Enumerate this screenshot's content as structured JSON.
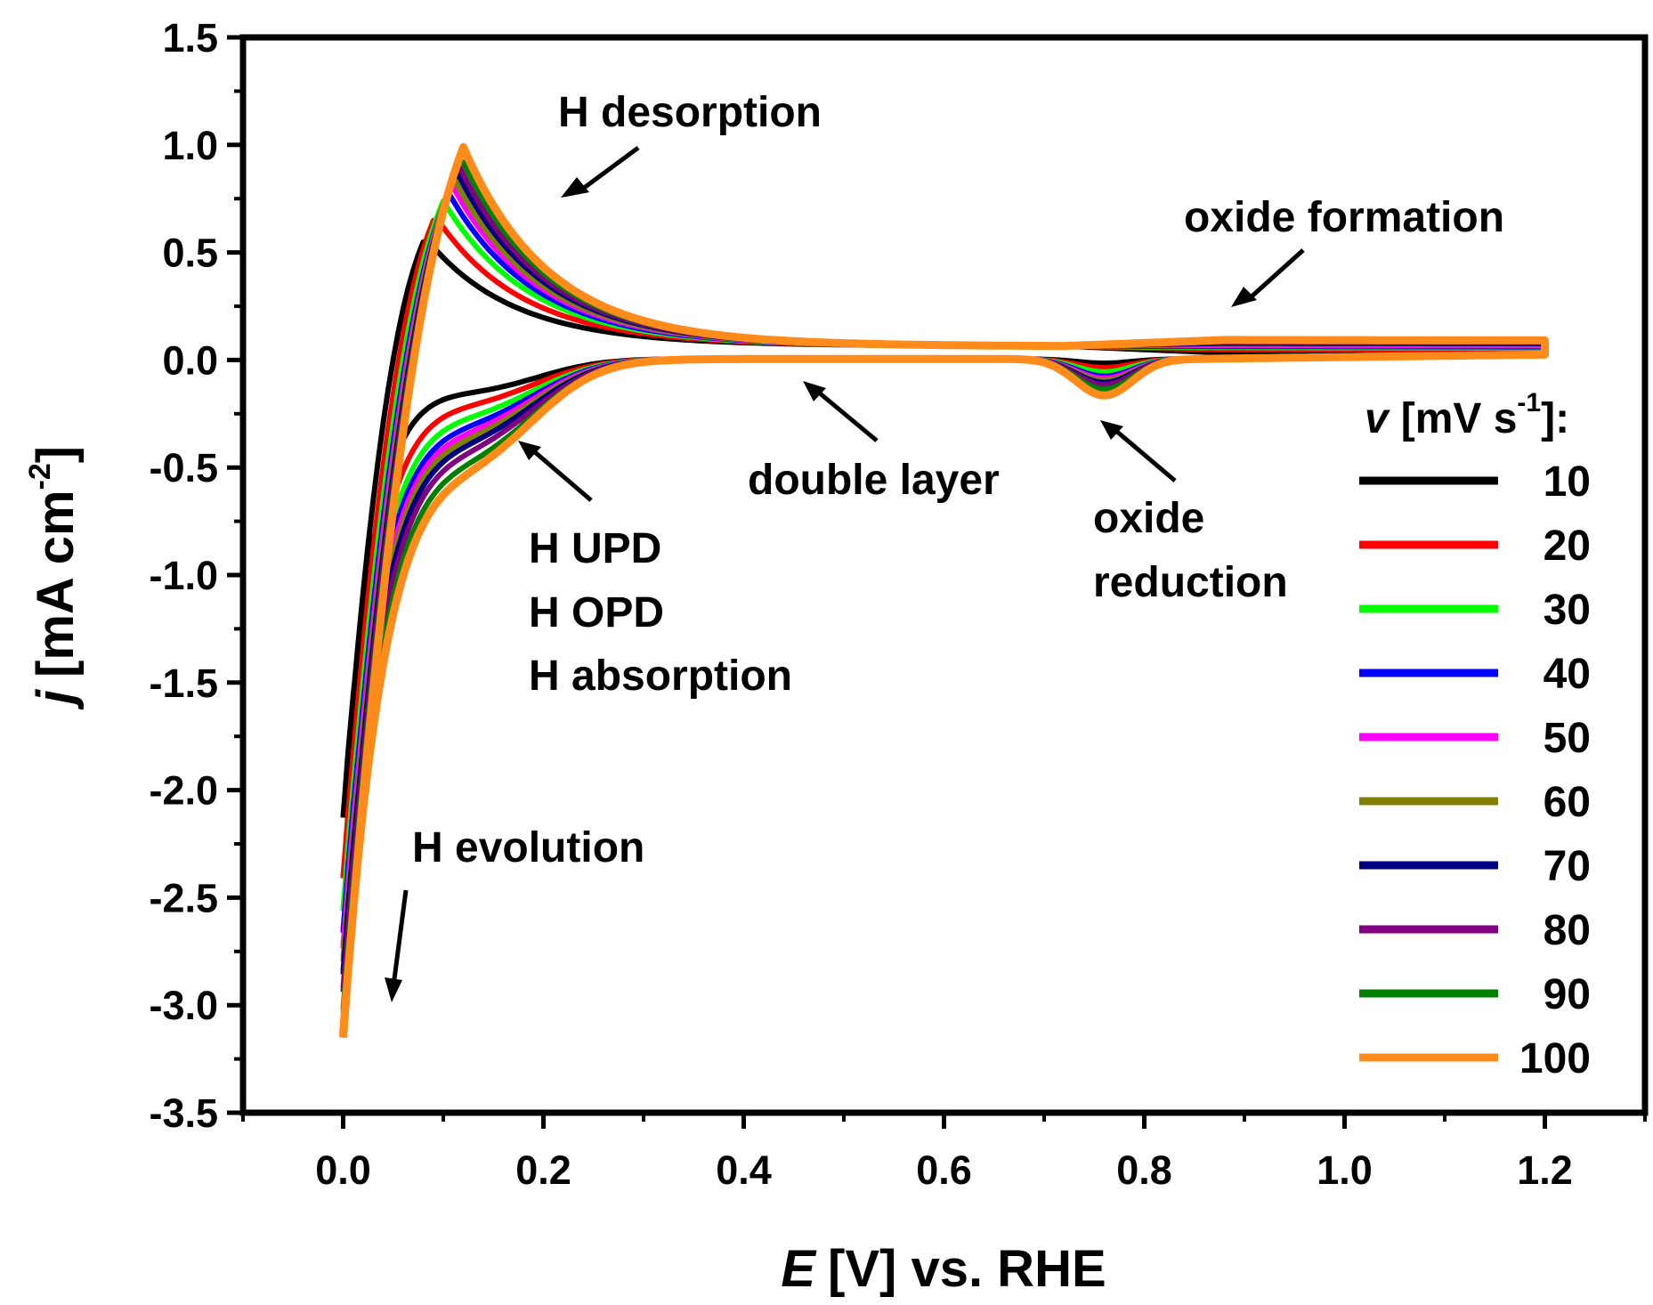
{
  "chart_data": {
    "type": "line",
    "xlabel": {
      "italic": "E",
      "rest": "[V] vs. RHE"
    },
    "ylabel": {
      "italic": "j",
      "rest": "[mA cm",
      "sup": "-2",
      "end": "]"
    },
    "xlim": [
      -0.1,
      1.3
    ],
    "ylim": [
      -3.5,
      1.5
    ],
    "x_ticks": [
      0.0,
      0.2,
      0.4,
      0.6,
      0.8,
      1.0,
      1.2
    ],
    "x_tick_labels": [
      "0.0",
      "0.2",
      "0.4",
      "0.6",
      "0.8",
      "1.0",
      "1.2"
    ],
    "y_ticks": [
      1.5,
      1.0,
      0.5,
      0.0,
      -0.5,
      -1.0,
      -1.5,
      -2.0,
      -2.5,
      -3.0,
      -3.5
    ],
    "y_tick_labels": [
      "1.5",
      "1.0",
      "0.5",
      "0.0",
      "-0.5",
      "-1.0",
      "-1.5",
      "-2.0",
      "-2.5",
      "-3.0",
      "-3.5"
    ],
    "legend": {
      "title": {
        "italic": "v",
        "rest": "[mV s",
        "sup": "-1",
        "end": "]:"
      },
      "position": "right"
    },
    "annotations": [
      {
        "key": "h_desorption",
        "lines": [
          "H desorption"
        ]
      },
      {
        "key": "oxide_formation",
        "lines": [
          "oxide formation"
        ]
      },
      {
        "key": "double_layer",
        "lines": [
          "double layer"
        ]
      },
      {
        "key": "oxide_reduction",
        "lines": [
          "oxide",
          "reduction"
        ]
      },
      {
        "key": "h_upd",
        "lines": [
          "H UPD",
          "H OPD",
          "H absorption"
        ]
      },
      {
        "key": "h_evolution",
        "lines": [
          "H evolution"
        ]
      }
    ],
    "series": [
      {
        "name": "10",
        "scan_rate": 10,
        "color": "#000000",
        "peak": 0.57,
        "peak_x": 0.082,
        "min": -2.12,
        "ox_red": -0.02,
        "ox_form": 0.03
      },
      {
        "name": "20",
        "scan_rate": 20,
        "color": "#ff0000",
        "peak": 0.67,
        "peak_x": 0.092,
        "min": -2.4,
        "ox_red": -0.04,
        "ox_form": 0.045
      },
      {
        "name": "30",
        "scan_rate": 30,
        "color": "#00ff00",
        "peak": 0.74,
        "peak_x": 0.1,
        "min": -2.55,
        "ox_red": -0.06,
        "ox_form": 0.055
      },
      {
        "name": "40",
        "scan_rate": 40,
        "color": "#0000ff",
        "peak": 0.78,
        "peak_x": 0.105,
        "min": -2.65,
        "ox_red": -0.08,
        "ox_form": 0.06
      },
      {
        "name": "50",
        "scan_rate": 50,
        "color": "#ff00ff",
        "peak": 0.82,
        "peak_x": 0.108,
        "min": -2.72,
        "ox_red": -0.09,
        "ox_form": 0.065
      },
      {
        "name": "60",
        "scan_rate": 60,
        "color": "#808000",
        "peak": 0.85,
        "peak_x": 0.11,
        "min": -2.78,
        "ox_red": -0.1,
        "ox_form": 0.07
      },
      {
        "name": "70",
        "scan_rate": 70,
        "color": "#000080",
        "peak": 0.88,
        "peak_x": 0.113,
        "min": -2.84,
        "ox_red": -0.11,
        "ox_form": 0.075
      },
      {
        "name": "80",
        "scan_rate": 80,
        "color": "#800080",
        "peak": 0.91,
        "peak_x": 0.115,
        "min": -2.92,
        "ox_red": -0.12,
        "ox_form": 0.08
      },
      {
        "name": "90",
        "scan_rate": 90,
        "color": "#008000",
        "peak": 0.95,
        "peak_x": 0.117,
        "min": -3.02,
        "ox_red": -0.14,
        "ox_form": 0.085
      },
      {
        "name": "100",
        "scan_rate": 100,
        "color": "#ff8c1a",
        "peak": 0.99,
        "peak_x": 0.12,
        "min": -3.13,
        "ox_red": -0.17,
        "ox_form": 0.09
      }
    ]
  }
}
